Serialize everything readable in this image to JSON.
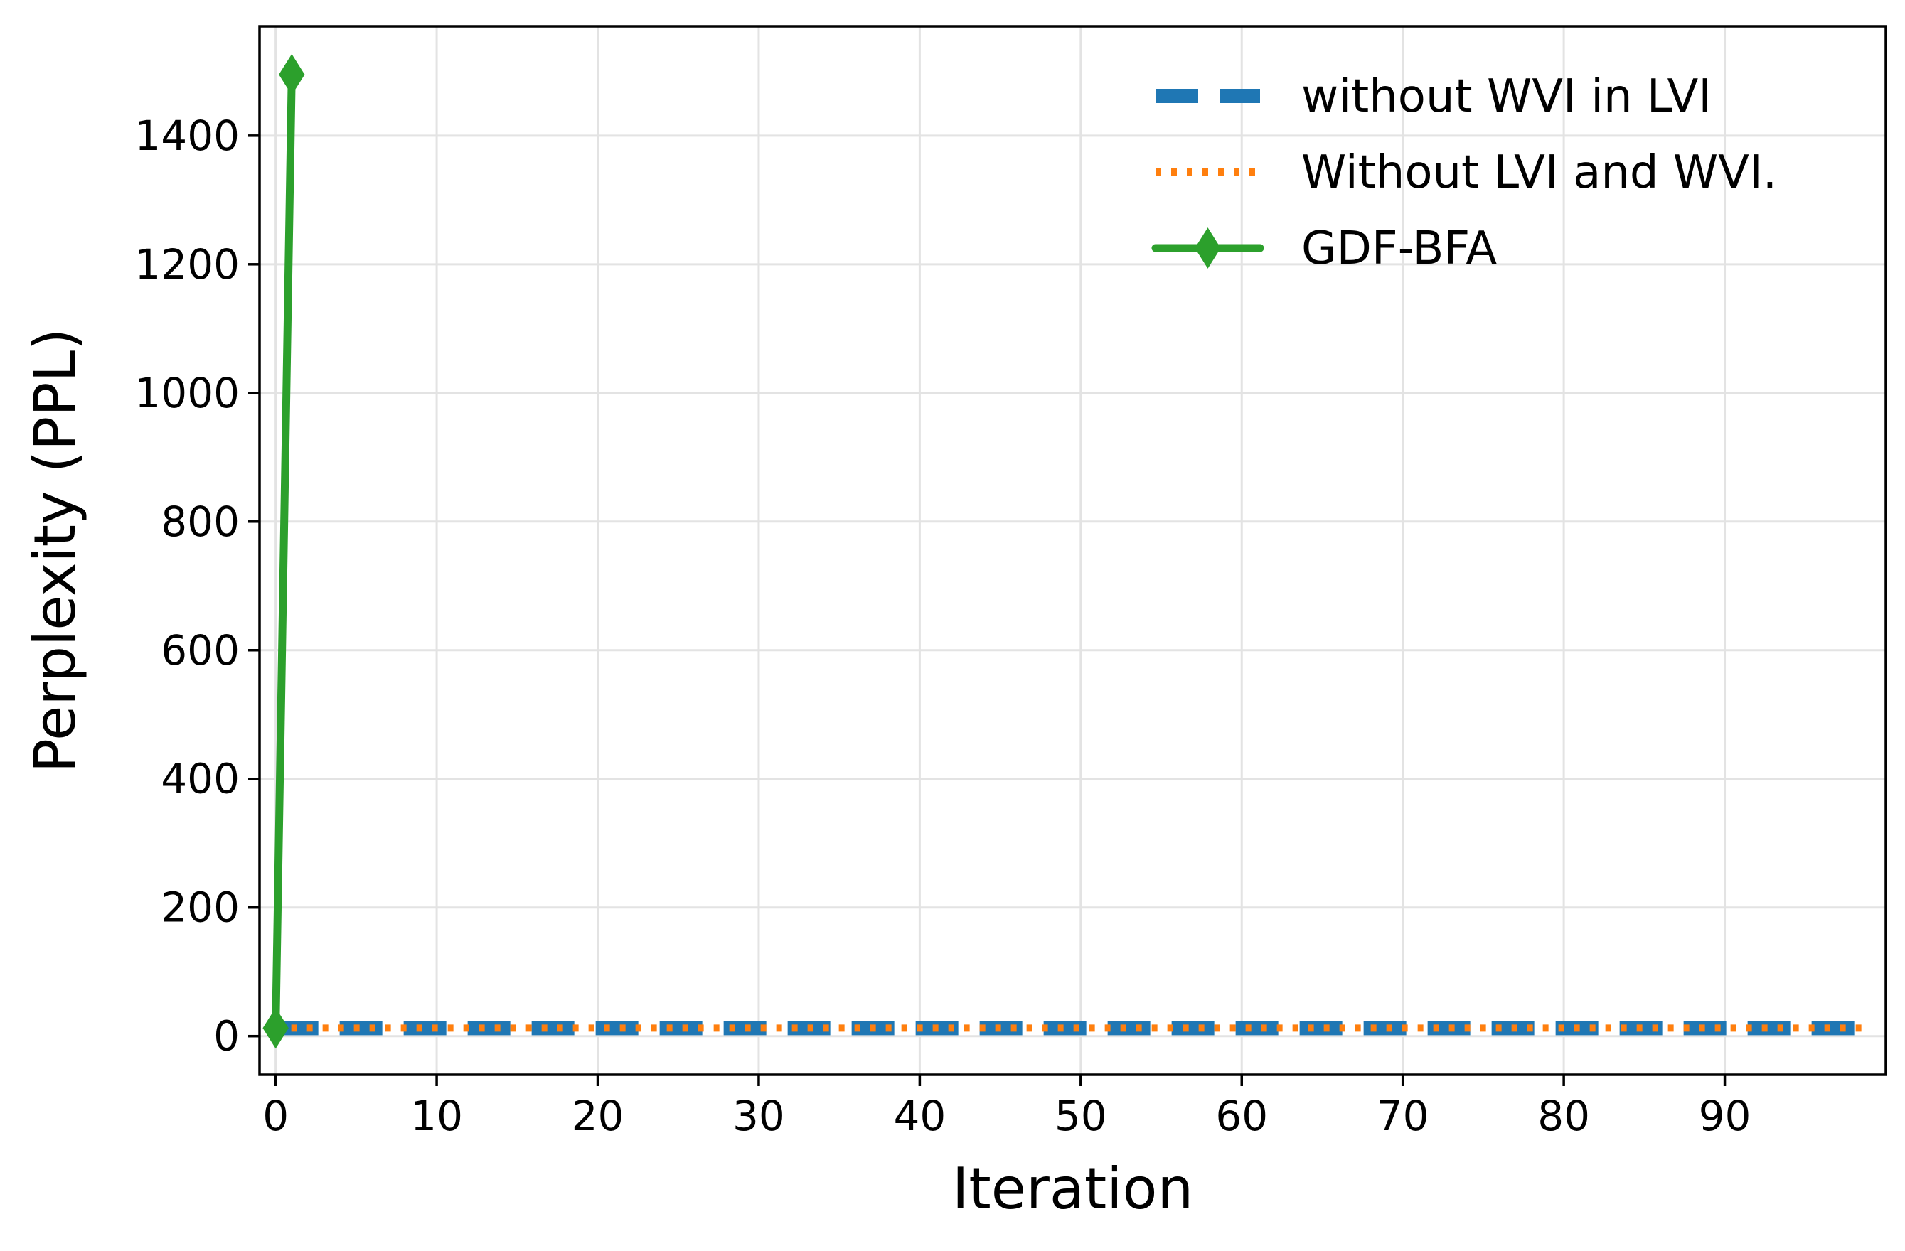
{
  "chart_data": {
    "type": "line",
    "title": "",
    "xlabel": "Iteration",
    "ylabel": "Perplexity (PPL)",
    "xlim": [
      -1,
      100
    ],
    "ylim": [
      -60,
      1570
    ],
    "xticks": [
      0,
      10,
      20,
      30,
      40,
      50,
      60,
      70,
      80,
      90
    ],
    "yticks": [
      0,
      200,
      400,
      600,
      800,
      1000,
      1200,
      1400
    ],
    "grid": true,
    "legend_position": "top-right",
    "series": [
      {
        "name": "without WVI in LVI",
        "color": "#1f77b4",
        "style": "dashed",
        "x": [
          0,
          99
        ],
        "y": [
          12.5,
          12.5
        ]
      },
      {
        "name": "Without LVI and WVI.",
        "color": "#ff7f0e",
        "style": "dotted",
        "x": [
          0,
          99
        ],
        "y": [
          12.5,
          12.5
        ]
      },
      {
        "name": "GDF-BFA",
        "color": "#2ca02c",
        "style": "solid",
        "marker": "thin-diamond",
        "x": [
          0,
          1
        ],
        "y": [
          12.5,
          1495
        ]
      }
    ]
  }
}
